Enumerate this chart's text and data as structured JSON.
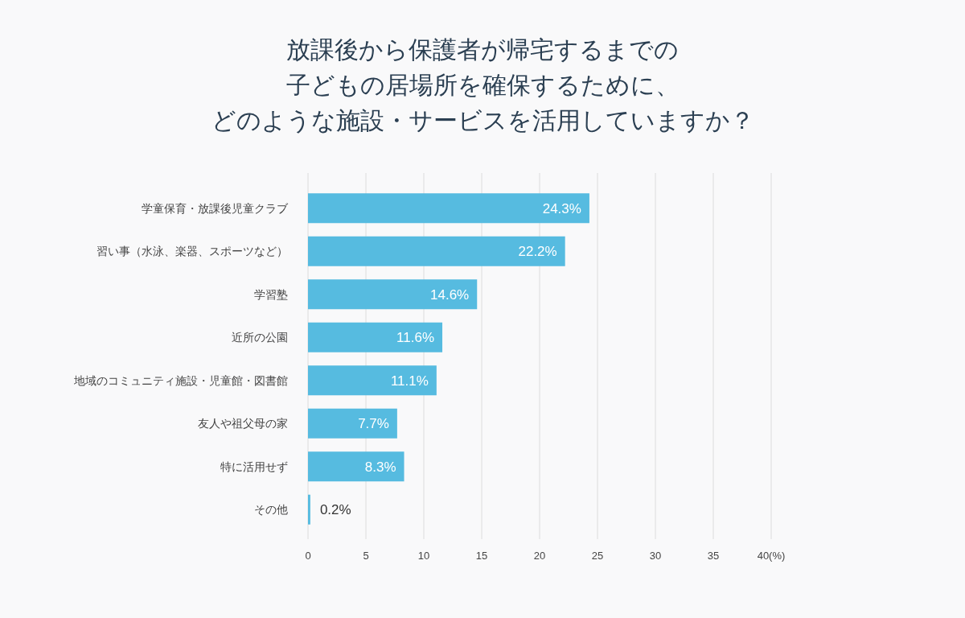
{
  "chart_data": {
    "type": "bar",
    "orientation": "horizontal",
    "title": "放課後から保護者が帰宅するまでの子どもの居場所を確保するために、どのような施設・サービスを活用していますか？",
    "categories": [
      "学童保育・放課後児童クラブ",
      "習い事（水泳、楽器、スポーツなど）",
      "学習塾",
      "近所の公園",
      "地域のコミュニティ施設・児童館・図書館",
      "友人や祖父母の家",
      "特に活用せず",
      "その他"
    ],
    "values": [
      24.3,
      22.2,
      14.6,
      11.6,
      11.1,
      7.7,
      8.3,
      0.2
    ],
    "value_labels": [
      "24.3%",
      "22.2%",
      "14.6%",
      "11.6%",
      "11.1%",
      "7.7%",
      "8.3%",
      "0.2%"
    ],
    "color": "#56bbe0",
    "xlim": [
      0,
      40
    ],
    "xticks": [
      0,
      5,
      10,
      15,
      20,
      25,
      30,
      35,
      {
        "value": 40,
        "label": "40(%)"
      }
    ],
    "grid": "x"
  }
}
